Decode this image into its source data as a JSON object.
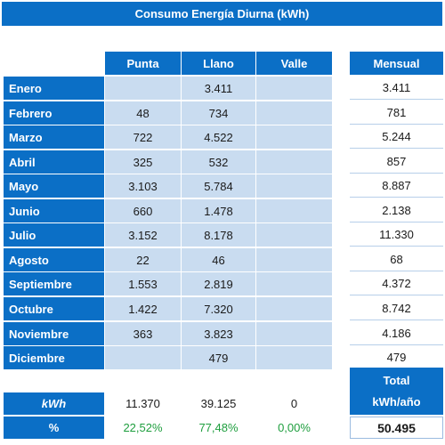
{
  "title": "Consumo Energía Diurna (kWh)",
  "headers": {
    "punta": "Punta",
    "llano": "Llano",
    "valle": "Valle",
    "mensual": "Mensual"
  },
  "months": [
    {
      "name": "Enero",
      "punta": "",
      "llano": "3.411",
      "valle": "",
      "mensual": "3.411"
    },
    {
      "name": "Febrero",
      "punta": "48",
      "llano": "734",
      "valle": "",
      "mensual": "781"
    },
    {
      "name": "Marzo",
      "punta": "722",
      "llano": "4.522",
      "valle": "",
      "mensual": "5.244"
    },
    {
      "name": "Abril",
      "punta": "325",
      "llano": "532",
      "valle": "",
      "mensual": "857"
    },
    {
      "name": "Mayo",
      "punta": "3.103",
      "llano": "5.784",
      "valle": "",
      "mensual": "8.887"
    },
    {
      "name": "Junio",
      "punta": "660",
      "llano": "1.478",
      "valle": "",
      "mensual": "2.138"
    },
    {
      "name": "Julio",
      "punta": "3.152",
      "llano": "8.178",
      "valle": "",
      "mensual": "11.330"
    },
    {
      "name": "Agosto",
      "punta": "22",
      "llano": "46",
      "valle": "",
      "mensual": "68"
    },
    {
      "name": "Septiembre",
      "punta": "1.553",
      "llano": "2.819",
      "valle": "",
      "mensual": "4.372"
    },
    {
      "name": "Octubre",
      "punta": "1.422",
      "llano": "7.320",
      "valle": "",
      "mensual": "8.742"
    },
    {
      "name": "Noviembre",
      "punta": "363",
      "llano": "3.823",
      "valle": "",
      "mensual": "4.186"
    },
    {
      "name": "Diciembre",
      "punta": "",
      "llano": "479",
      "valle": "",
      "mensual": "479"
    }
  ],
  "totals": {
    "kwh_label": "kWh",
    "pct_label": "%",
    "punta_kwh": "11.370",
    "llano_kwh": "39.125",
    "valle_kwh": "0",
    "punta_pct": "22,52%",
    "llano_pct": "77,48%",
    "valle_pct": "0,00%",
    "total_label": "Total",
    "total_unit": "kWh/año",
    "total_value": "50.495"
  },
  "colors": {
    "header_blue": "#0b6fc6",
    "cell_light": "#c9dcf0",
    "pct_green": "#1e9e3e"
  }
}
